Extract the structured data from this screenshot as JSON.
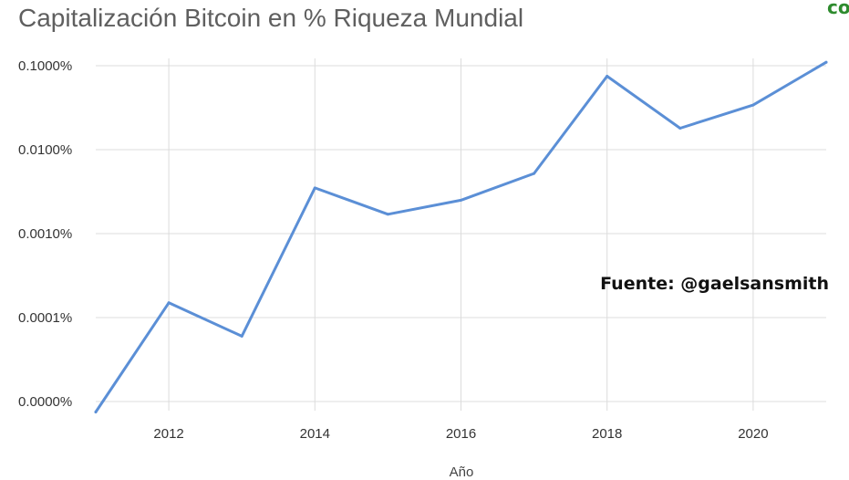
{
  "chart_data": {
    "type": "line",
    "title": "Capitalización Bitcoin en % Riqueza Mundial",
    "xlabel": "Año",
    "ylabel": "",
    "y_scale": "log",
    "x_ticks": [
      2012,
      2014,
      2016,
      2018,
      2020
    ],
    "y_ticks": [
      {
        "value": 1e-05,
        "label": "0.0000%"
      },
      {
        "value": 0.0001,
        "label": "0.0001%"
      },
      {
        "value": 0.001,
        "label": "0.0010%"
      },
      {
        "value": 0.01,
        "label": "0.0100%"
      },
      {
        "value": 0.1,
        "label": "0.1000%"
      }
    ],
    "xlim": [
      2011,
      2021
    ],
    "ylim": [
      1e-05,
      0.1
    ],
    "grid": true,
    "series_color": "#5b8fd6",
    "series": [
      {
        "x": [
          2011,
          2012,
          2013,
          2014,
          2015,
          2016,
          2017,
          2018,
          2019,
          2020,
          2021
        ],
        "values": [
          7.5e-06,
          0.00015,
          6e-05,
          0.0035,
          0.0017,
          0.0025,
          0.0052,
          0.075,
          0.018,
          0.034,
          0.11
        ]
      }
    ]
  },
  "annotations": {
    "source": "Fuente: @gaelsansmith",
    "corner_mark": "co"
  }
}
